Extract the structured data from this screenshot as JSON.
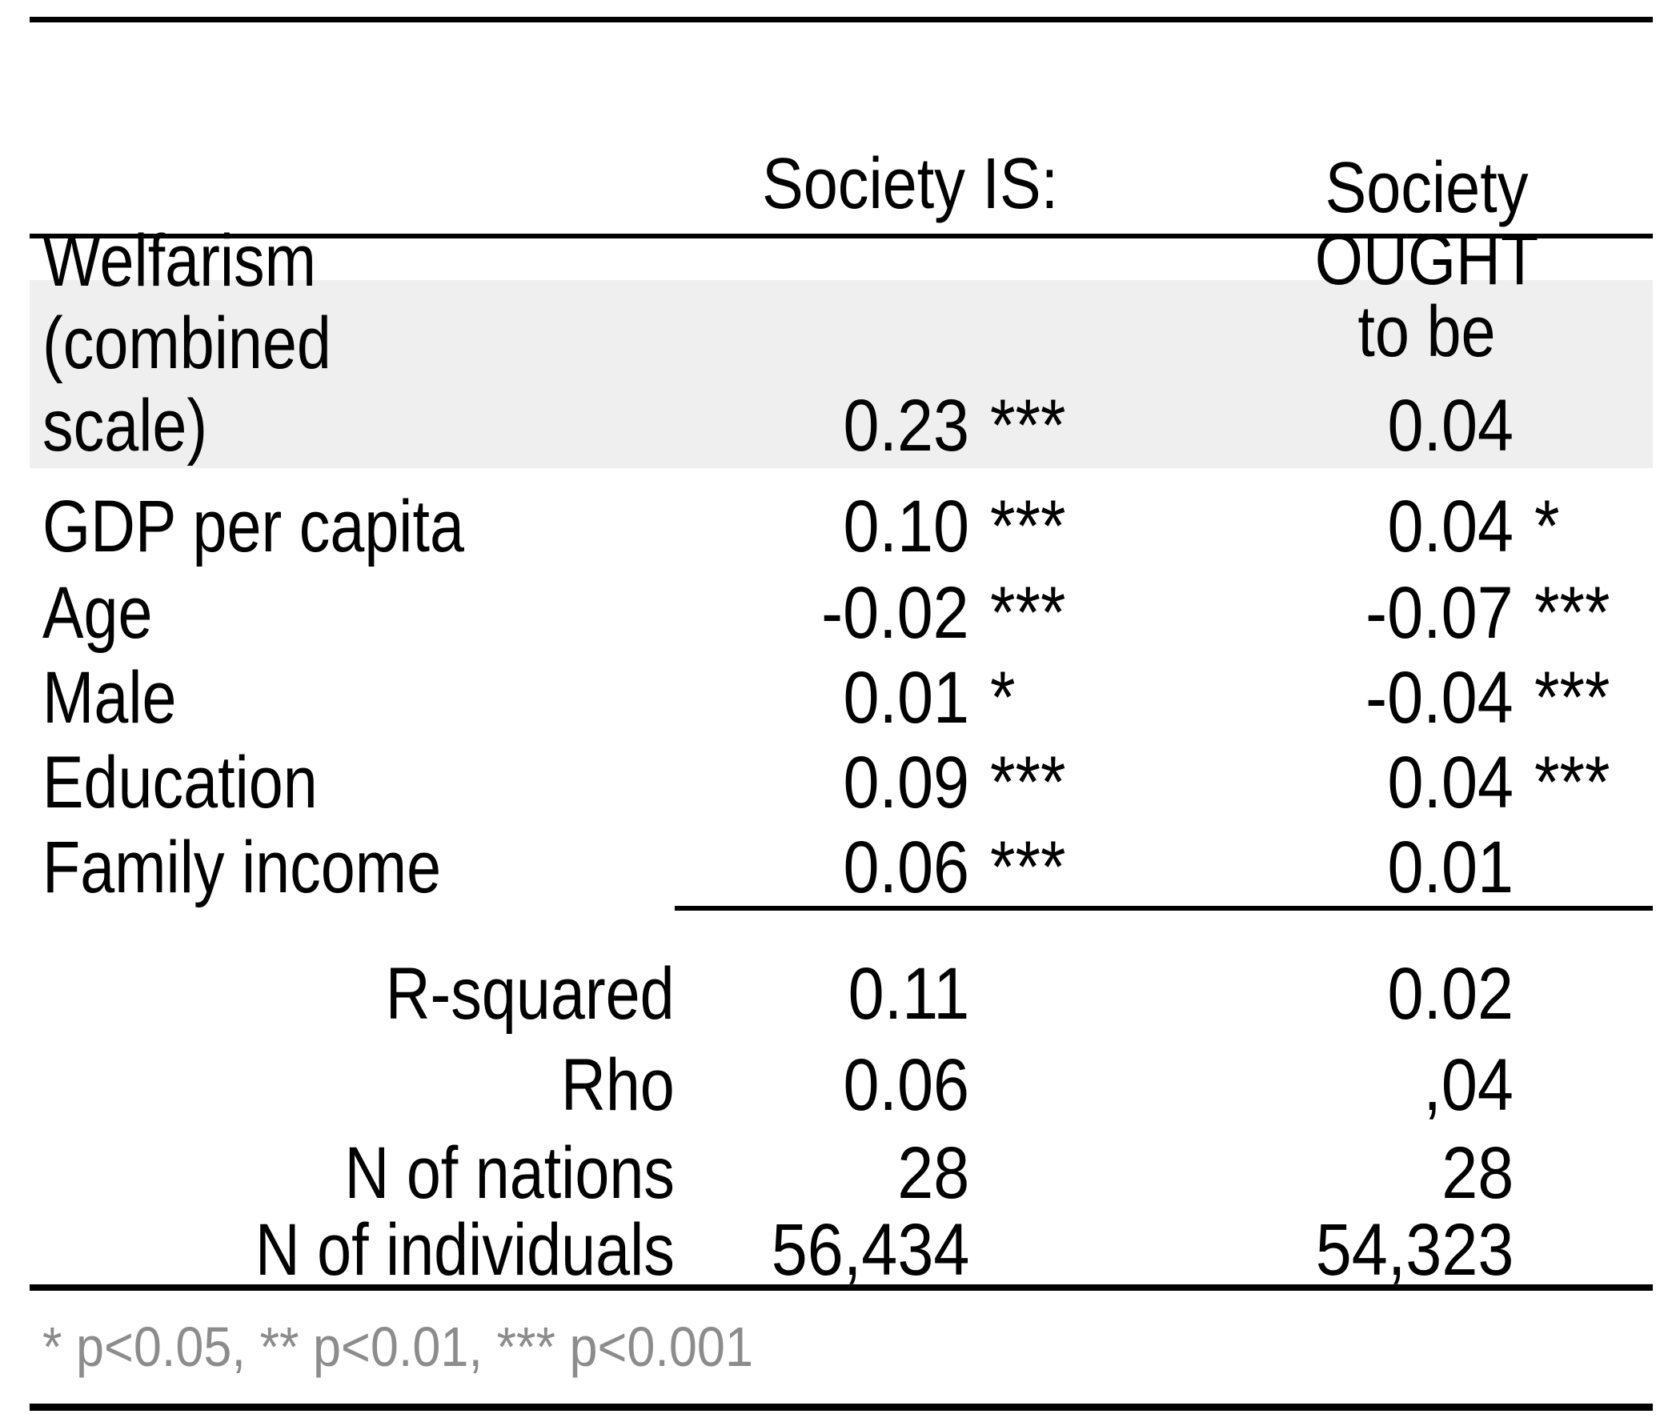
{
  "table": {
    "header": {
      "is_label": "Society IS:",
      "ought_label": "Society OUGHT\nto be"
    },
    "rows": [
      {
        "label": "Welfarism (combined\nscale)",
        "is_value": "0.23",
        "is_sig": "***",
        "ought_value": "0.04",
        "ought_sig": ""
      },
      {
        "label": "GDP per capita",
        "is_value": "0.10",
        "is_sig": "***",
        "ought_value": "0.04",
        "ought_sig": "*"
      },
      {
        "label": "Age",
        "is_value": "-0.02",
        "is_sig": "***",
        "ought_value": "-0.07",
        "ought_sig": "***"
      },
      {
        "label": "Male",
        "is_value": "0.01",
        "is_sig": "*",
        "ought_value": "-0.04",
        "ought_sig": "***"
      },
      {
        "label": "Education",
        "is_value": "0.09",
        "is_sig": "***",
        "ought_value": "0.04",
        "ought_sig": "***"
      },
      {
        "label": "Family income",
        "is_value": "0.06",
        "is_sig": "***",
        "ought_value": "0.01",
        "ought_sig": ""
      }
    ],
    "stats": [
      {
        "label": "R-squared",
        "is_value": "0.11",
        "ought_value": "0.02"
      },
      {
        "label": "Rho",
        "is_value": "0.06",
        "ought_value": ",04"
      },
      {
        "label": "N of nations",
        "is_value": "28",
        "ought_value": "28"
      },
      {
        "label": "N of individuals",
        "is_value": "56,434",
        "ought_value": "54,323"
      }
    ],
    "footnote": "* p<0.05, ** p<0.01, *** p<0.001",
    "colors": {
      "shade": "#efefef",
      "footnote_gray": "#8c8c8c",
      "rule": "#000000",
      "text": "#000000",
      "background": "#ffffff"
    }
  },
  "chart_data": {
    "type": "table",
    "title": "",
    "columns": [
      "",
      "Society IS:",
      "Society OUGHT to be"
    ],
    "rows": [
      [
        "Welfarism (combined scale)",
        "0.23 ***",
        "0.04"
      ],
      [
        "GDP per capita",
        "0.10 ***",
        "0.04 *"
      ],
      [
        "Age",
        "-0.02 ***",
        "-0.07 ***"
      ],
      [
        "Male",
        "0.01 *",
        "-0.04 ***"
      ],
      [
        "Education",
        "0.09 ***",
        "0.04 ***"
      ],
      [
        "Family income",
        "0.06 ***",
        "0.01"
      ],
      [
        "R-squared",
        "0.11",
        "0.02"
      ],
      [
        "Rho",
        "0.06",
        ",04"
      ],
      [
        "N of nations",
        "28",
        "28"
      ],
      [
        "N of individuals",
        "56,434",
        "54,323"
      ]
    ],
    "annotations": [
      "* p<0.05, ** p<0.01, *** p<0.001"
    ]
  }
}
